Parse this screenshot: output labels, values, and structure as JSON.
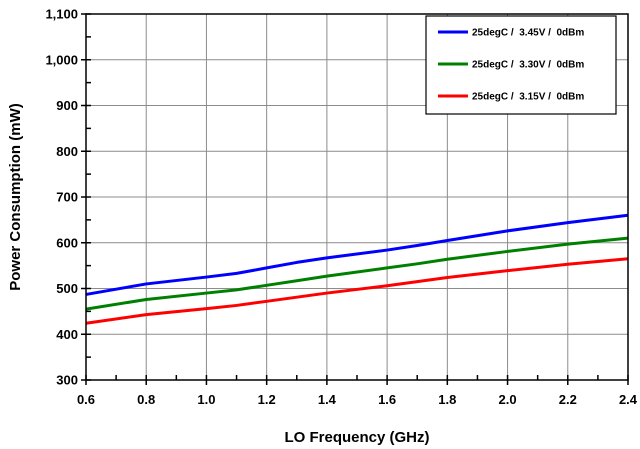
{
  "chart_data": {
    "type": "line",
    "title": "",
    "xlabel": "LO Frequency (GHz)",
    "ylabel": "Power Consumption (mW)",
    "xlim": [
      0.6,
      2.4
    ],
    "ylim": [
      300,
      1100
    ],
    "x_ticks": [
      0.6,
      0.8,
      1.0,
      1.2,
      1.4,
      1.6,
      1.8,
      2.0,
      2.2,
      2.4
    ],
    "x_tick_labels": [
      "0.6",
      "0.8",
      "1.0",
      "1.2",
      "1.4",
      "1.6",
      "1.8",
      "2.0",
      "2.2",
      "2.4"
    ],
    "y_ticks": [
      300,
      400,
      500,
      600,
      700,
      800,
      900,
      1000,
      1100
    ],
    "y_tick_labels": [
      "300",
      "400",
      "500",
      "600",
      "700",
      "800",
      "900",
      "1,000",
      "1,100"
    ],
    "grid": true,
    "legend_position": "top-right",
    "x": [
      0.6,
      0.8,
      1.0,
      1.1,
      1.2,
      1.3,
      1.4,
      1.6,
      1.7,
      1.8,
      2.0,
      2.2,
      2.4
    ],
    "series": [
      {
        "name": "25degC /  3.45V /  0dBm",
        "color": "#0000ff",
        "values": [
          487,
          510,
          525,
          533,
          545,
          557,
          567,
          584,
          594,
          605,
          626,
          644,
          660
        ]
      },
      {
        "name": "25degC /  3.30V /  0dBm",
        "color": "#008000",
        "values": [
          455,
          476,
          490,
          497,
          507,
          517,
          527,
          545,
          554,
          564,
          581,
          597,
          610
        ]
      },
      {
        "name": "25degC /  3.15V /  0dBm",
        "color": "#ff0000",
        "values": [
          424,
          443,
          456,
          463,
          472,
          481,
          490,
          506,
          515,
          524,
          539,
          553,
          565
        ]
      }
    ]
  }
}
